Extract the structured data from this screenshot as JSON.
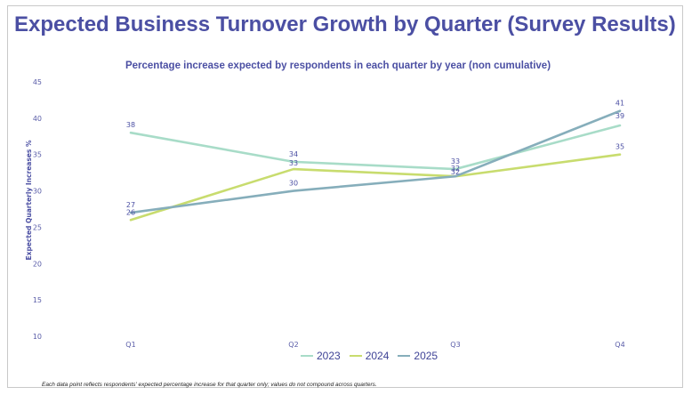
{
  "colors": {
    "2023": "#a8dcc8",
    "2024": "#c8dc6e",
    "2025": "#86aebb",
    "title": "#4b4fa3"
  },
  "chart_data": {
    "type": "line",
    "title": "Expected Business Turnover Growth by Quarter (Survey Results)",
    "subtitle": "Percentage increase expected by respondents in each quarter by year (non cumulative)",
    "xlabel": "",
    "ylabel": "Expected Quarterly Increases %",
    "categories": [
      "Q1",
      "Q2",
      "Q3",
      "Q4"
    ],
    "ylim": [
      10,
      45
    ],
    "yticks": [
      "10",
      "15",
      "20",
      "25",
      "30",
      "35",
      "40",
      "45"
    ],
    "series": [
      {
        "name": "2023",
        "values": [
          38,
          34,
          33,
          39
        ]
      },
      {
        "name": "2024",
        "values": [
          26,
          33,
          32,
          35
        ]
      },
      {
        "name": "2025",
        "values": [
          27,
          30,
          32,
          41
        ]
      }
    ],
    "legend_position": "bottom-center",
    "grid": false,
    "footnote": "Each data point reflects respondents' expected percentage increase for that quarter only; values do not compound across quarters."
  }
}
